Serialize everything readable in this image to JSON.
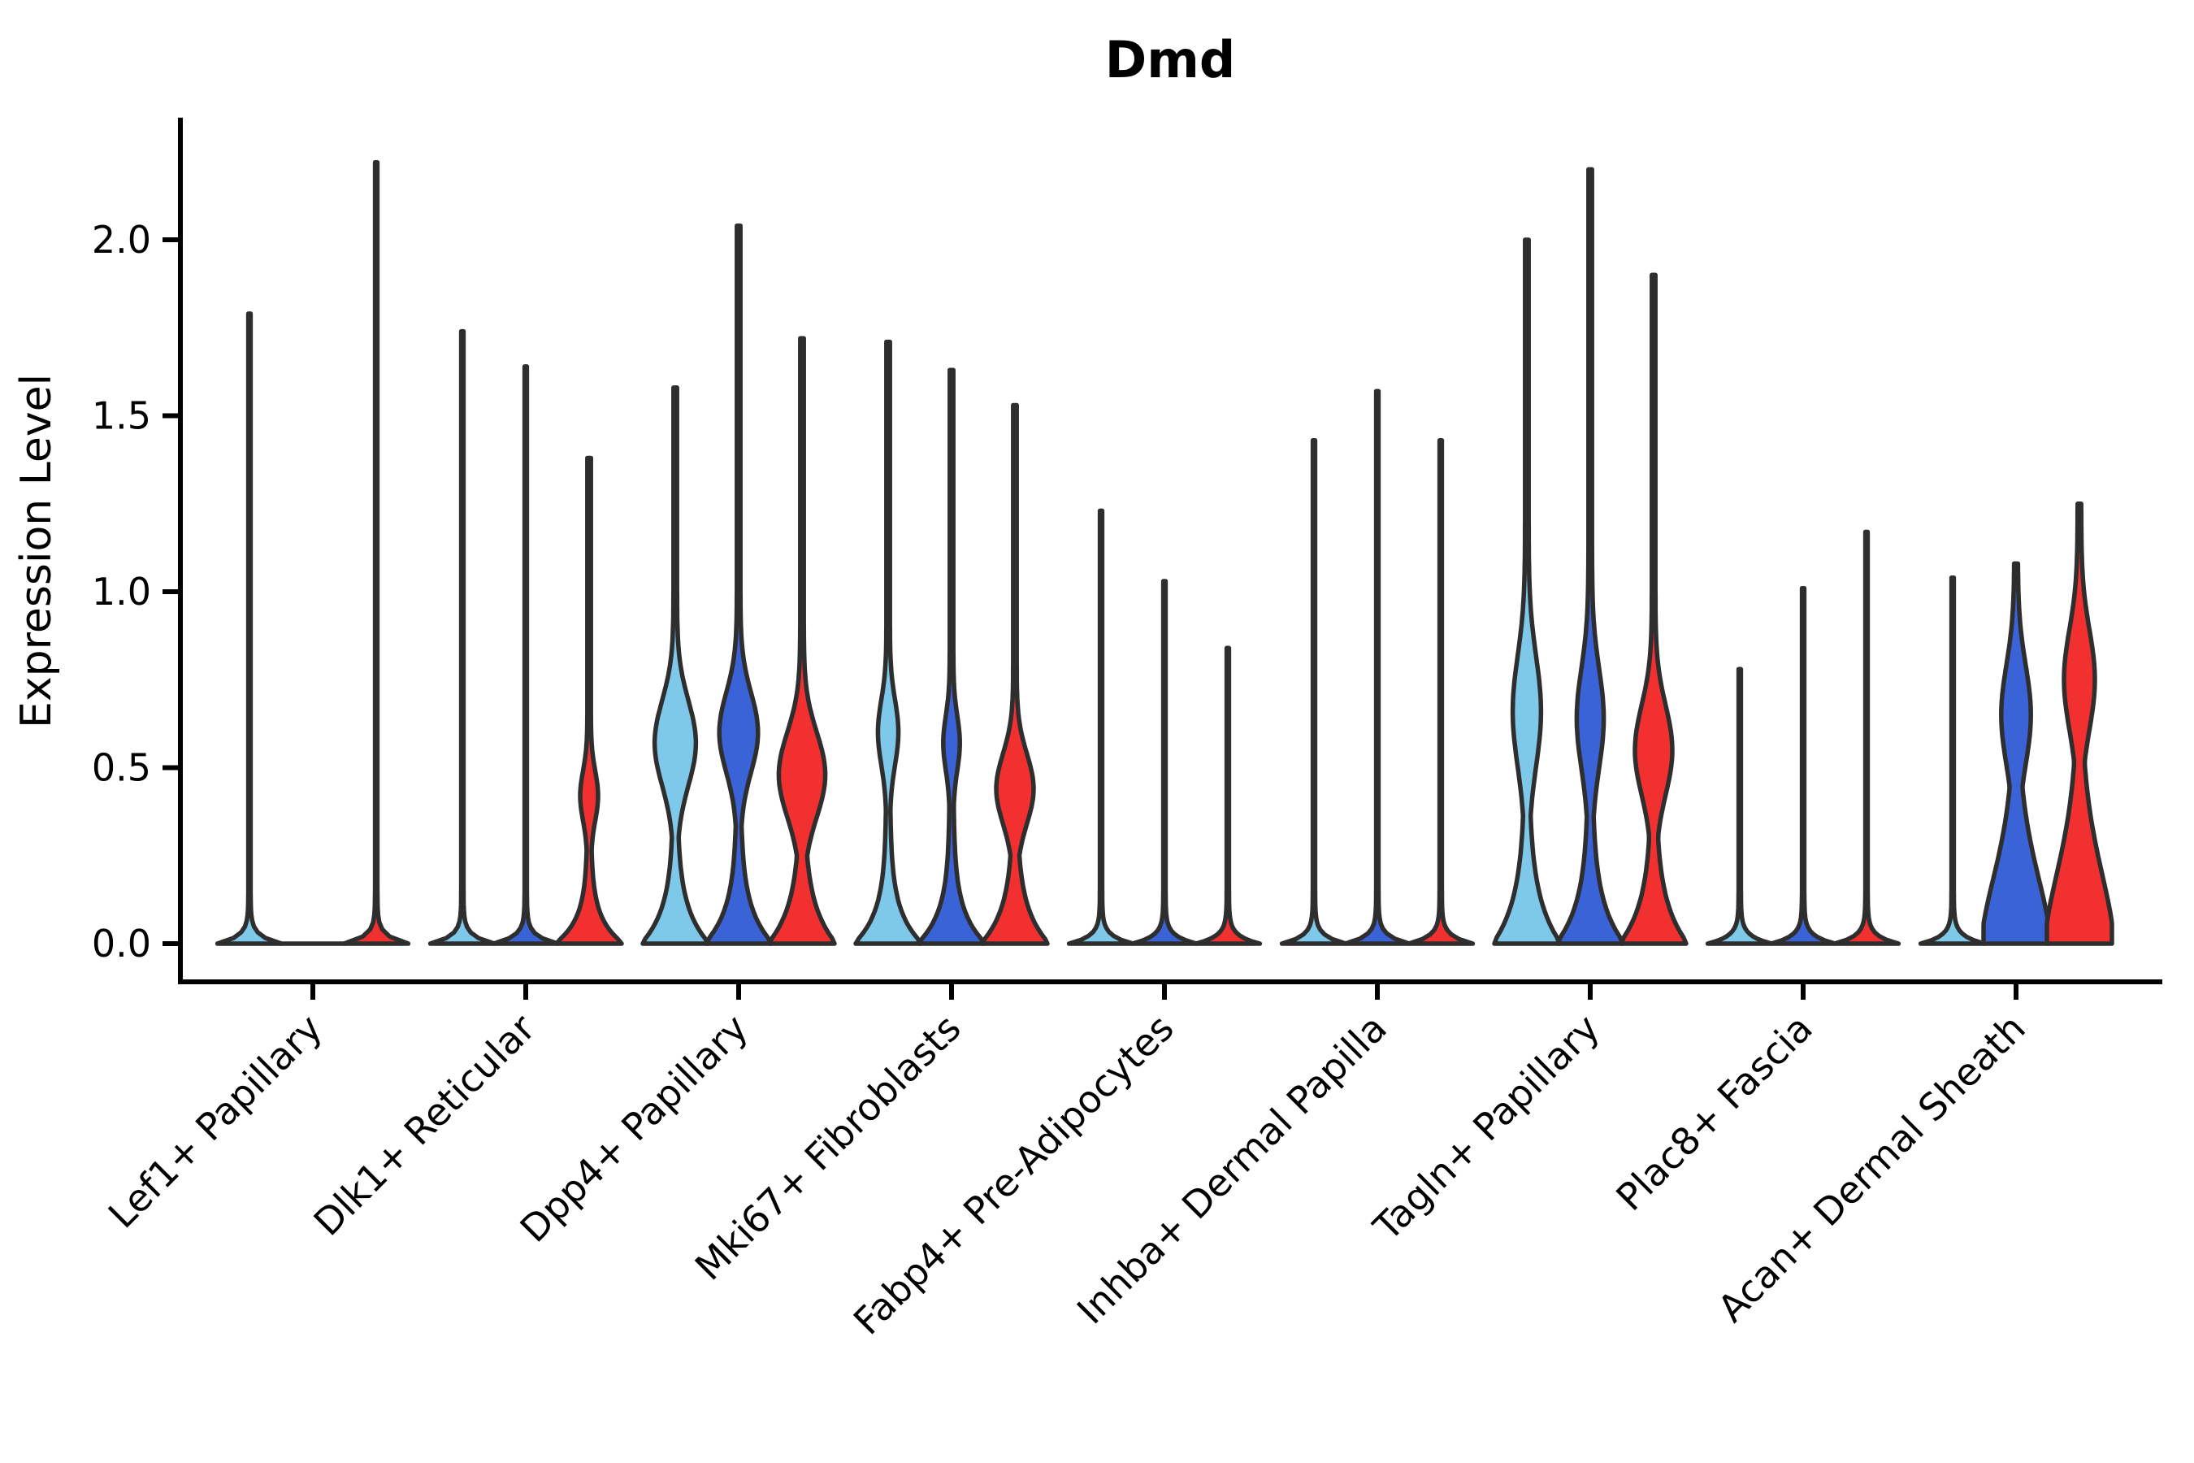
{
  "colors": {
    "background": "#ffffff",
    "edge": "#2E2E2E",
    "text": "#000000"
  },
  "chart_data": {
    "type": "violin",
    "title": "Dmd",
    "xlabel": "",
    "ylabel": "Expression Level",
    "ylim": [
      -0.11,
      2.34
    ],
    "yticks": [
      0.0,
      0.5,
      1.0,
      1.5,
      2.0
    ],
    "ytick_labels": [
      "0.0",
      "0.5",
      "1.0",
      "1.5",
      "2.0"
    ],
    "grid": false,
    "legend": "none",
    "categories": [
      "Lef1+ Papillary",
      "Dlk1+ Reticular",
      "Dpp4+ Papillary",
      "Mki67+ Fibroblasts",
      "Fabp4+ Pre-Adipocytes",
      "Inhba+ Dermal Papilla",
      "Tagln+ Papillary",
      "Plac8+ Fascia",
      "Acan+ Dermal Sheath"
    ],
    "series": [
      {
        "name": "light-blue",
        "color": "#7EC8EA",
        "max_expression": [
          1.79,
          1.74,
          1.58,
          1.71,
          1.23,
          1.43,
          2.0,
          0.78,
          1.04
        ],
        "shapes": [
          {
            "kind": "spike"
          },
          {
            "kind": "spike"
          },
          {
            "kind": "violin",
            "base": 0.1,
            "p": 1,
            "bulge_center": 0.57,
            "bulge_sd": 0.17,
            "bulge_w": 0.58
          },
          {
            "kind": "violin",
            "base": 0.09,
            "p": 1,
            "bulge_center": 0.6,
            "bulge_sd": 0.13,
            "bulge_w": 0.26
          },
          {
            "kind": "spike"
          },
          {
            "kind": "spike"
          },
          {
            "kind": "violin",
            "base": 0.13,
            "p": 1,
            "bulge_center": 0.66,
            "bulge_sd": 0.22,
            "bulge_w": 0.38
          },
          {
            "kind": "spike"
          },
          {
            "kind": "spike"
          }
        ]
      },
      {
        "name": "blue",
        "color": "#3B63D8",
        "max_expression": [
          0.0,
          1.64,
          2.04,
          1.63,
          1.03,
          1.57,
          2.2,
          1.01,
          1.08
        ],
        "shapes": [
          {
            "kind": "flat"
          },
          {
            "kind": "spike"
          },
          {
            "kind": "violin",
            "base": 0.1,
            "p": 1,
            "bulge_center": 0.6,
            "bulge_sd": 0.16,
            "bulge_w": 0.54
          },
          {
            "kind": "violin",
            "base": 0.09,
            "p": 1,
            "bulge_center": 0.57,
            "bulge_sd": 0.11,
            "bulge_w": 0.2
          },
          {
            "kind": "spike"
          },
          {
            "kind": "spike"
          },
          {
            "kind": "violin",
            "base": 0.12,
            "p": 1,
            "bulge_center": 0.64,
            "bulge_sd": 0.2,
            "bulge_w": 0.36
          },
          {
            "kind": "spike"
          },
          {
            "kind": "violin",
            "base": 0.3,
            "p": 1.7,
            "bulge_center": 0.65,
            "bulge_sd": 0.2,
            "bulge_w": 0.4
          }
        ]
      },
      {
        "name": "red",
        "color": "#F23030",
        "max_expression": [
          2.22,
          1.38,
          1.72,
          1.53,
          0.84,
          1.43,
          1.9,
          1.17,
          1.25
        ],
        "shapes": [
          {
            "kind": "spike"
          },
          {
            "kind": "violin",
            "base": 0.07,
            "p": 1,
            "bulge_center": 0.42,
            "bulge_sd": 0.1,
            "bulge_w": 0.22
          },
          {
            "kind": "violin",
            "base": 0.11,
            "p": 1,
            "bulge_center": 0.48,
            "bulge_sd": 0.17,
            "bulge_w": 0.66
          },
          {
            "kind": "violin",
            "base": 0.1,
            "p": 1,
            "bulge_center": 0.44,
            "bulge_sd": 0.14,
            "bulge_w": 0.52
          },
          {
            "kind": "spike"
          },
          {
            "kind": "spike"
          },
          {
            "kind": "violin",
            "base": 0.12,
            "p": 1,
            "bulge_center": 0.55,
            "bulge_sd": 0.18,
            "bulge_w": 0.52
          },
          {
            "kind": "spike"
          },
          {
            "kind": "violin",
            "base": 0.32,
            "p": 1.7,
            "bulge_center": 0.75,
            "bulge_sd": 0.2,
            "bulge_w": 0.42
          }
        ]
      }
    ]
  }
}
